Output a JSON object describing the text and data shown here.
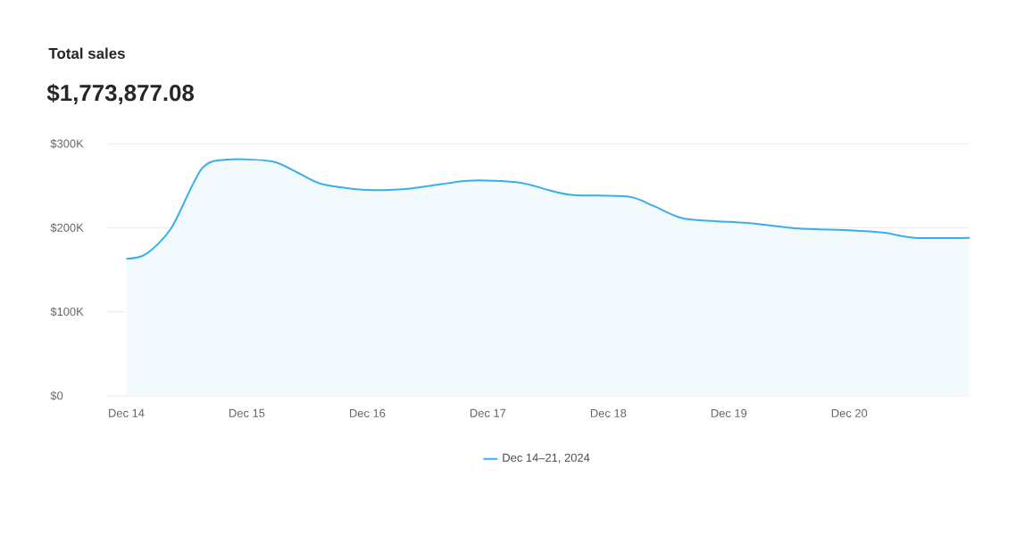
{
  "chart_data": {
    "type": "area",
    "title": "Total sales",
    "subtitle": "$1,773,877.08",
    "x": [
      "2024-12-14T00:00",
      "2024-12-14T04:00",
      "2024-12-14T09:00",
      "2024-12-14T15:00",
      "2024-12-14T20:00",
      "2024-12-15T05:00",
      "2024-12-15T10:00",
      "2024-12-15T15:00",
      "2024-12-16T00:00",
      "2024-12-16T09:00",
      "2024-12-16T20:00",
      "2024-12-17T06:00",
      "2024-12-17T12:00",
      "2024-12-17T17:00",
      "2024-12-18T04:00",
      "2024-12-18T09:00",
      "2024-12-18T15:00",
      "2024-12-19T00:00",
      "2024-12-19T05:00",
      "2024-12-19T14:00",
      "2024-12-20T00:00",
      "2024-12-20T07:00",
      "2024-12-20T13:00",
      "2024-12-21T00:00"
    ],
    "series": [
      {
        "name": "Dec 14–21, 2024",
        "color": "#3aaeea",
        "values": [
          163000,
          169000,
          200000,
          270000,
          281000,
          279000,
          266000,
          252000,
          245000,
          247000,
          256000,
          254000,
          245000,
          239000,
          237000,
          226000,
          211000,
          207000,
          205000,
          199000,
          197000,
          194000,
          188000,
          188000
        ]
      }
    ],
    "xlim": [
      "2024-12-13T20:00",
      "2024-12-21T00:00"
    ],
    "xticks": [
      {
        "value": "2024-12-14",
        "label": "Dec 14"
      },
      {
        "value": "2024-12-15",
        "label": "Dec 15"
      },
      {
        "value": "2024-12-16",
        "label": "Dec 16"
      },
      {
        "value": "2024-12-17",
        "label": "Dec 17"
      },
      {
        "value": "2024-12-18",
        "label": "Dec 18"
      },
      {
        "value": "2024-12-19",
        "label": "Dec 19"
      },
      {
        "value": "2024-12-20",
        "label": "Dec 20"
      }
    ],
    "ylim": [
      0,
      300000
    ],
    "yticks": [
      {
        "value": 0,
        "label": "$0"
      },
      {
        "value": 100000,
        "label": "$100K"
      },
      {
        "value": 200000,
        "label": "$200K"
      },
      {
        "value": 300000,
        "label": "$300K"
      }
    ],
    "grid": "y",
    "legend": "bottom"
  }
}
